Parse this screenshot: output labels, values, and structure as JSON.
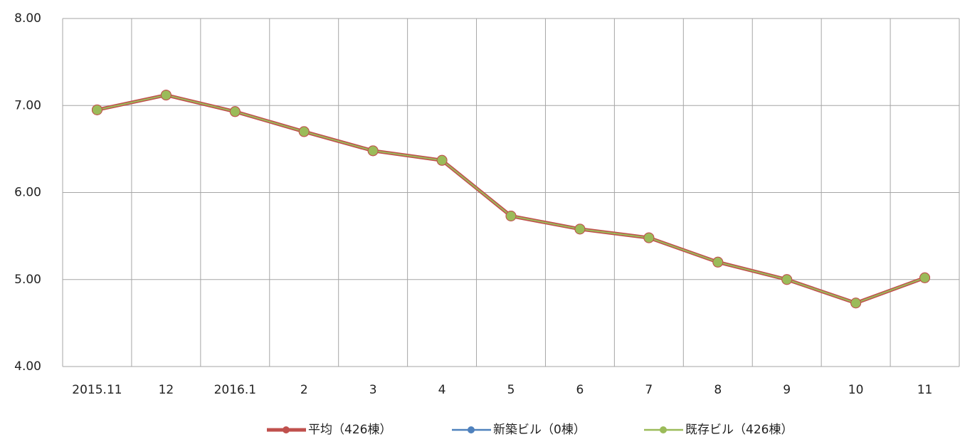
{
  "chart_data": {
    "type": "line",
    "categories": [
      "2015.11",
      "12",
      "2016.1",
      "2",
      "3",
      "4",
      "5",
      "6",
      "7",
      "8",
      "9",
      "10",
      "11"
    ],
    "series": [
      {
        "name": "平均（426棟）",
        "color": "#c0504d",
        "values": [
          6.95,
          7.12,
          6.93,
          6.7,
          6.48,
          6.37,
          5.73,
          5.58,
          5.48,
          5.2,
          5.0,
          4.73,
          5.02
        ]
      },
      {
        "name": "新築ビル（0棟）",
        "color": "#4f81bd",
        "values": [
          null,
          null,
          null,
          null,
          null,
          null,
          null,
          null,
          null,
          null,
          null,
          null,
          null
        ]
      },
      {
        "name": "既存ビル（426棟）",
        "color": "#9bbb59",
        "values": [
          6.95,
          7.12,
          6.93,
          6.7,
          6.48,
          6.37,
          5.73,
          5.58,
          5.48,
          5.2,
          5.0,
          4.73,
          5.02
        ]
      }
    ],
    "ylim": [
      4,
      8
    ],
    "yticks": [
      {
        "value": 4,
        "label": "4.00"
      },
      {
        "value": 5,
        "label": "5.00"
      },
      {
        "value": 6,
        "label": "6.00"
      },
      {
        "value": 7,
        "label": "7.00"
      },
      {
        "value": 8,
        "label": "8.00"
      }
    ],
    "grid": true,
    "legend": "bottom"
  }
}
